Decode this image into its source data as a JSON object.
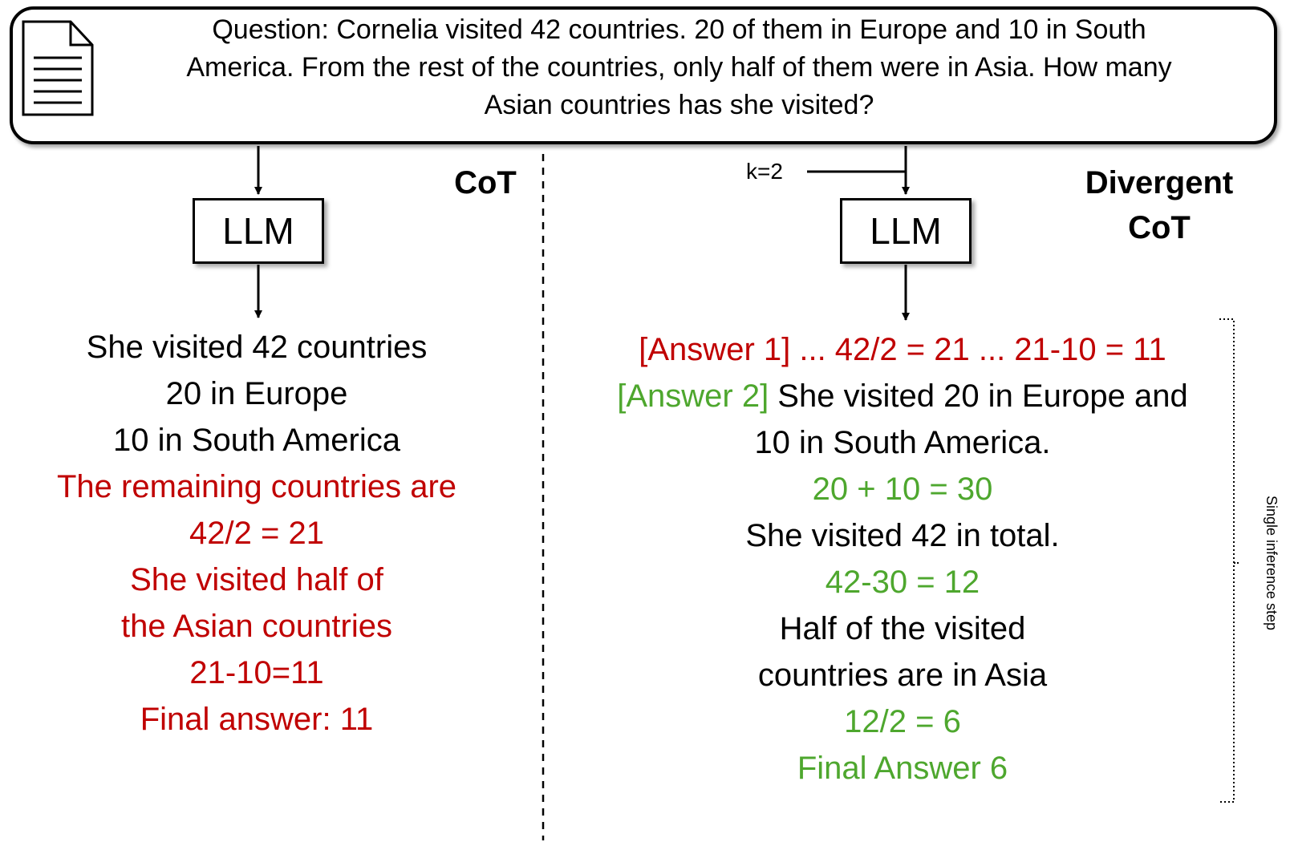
{
  "question": {
    "lines": [
      "Question: Cornelia visited 42 countries. 20 of them in Europe and 10 in South",
      "America. From the rest of the countries, only half of them were in Asia.  How many",
      "Asian countries has she visited?"
    ]
  },
  "cot": {
    "title": "CoT",
    "llm_label": "LLM",
    "lines": [
      {
        "text": "She visited 42 countries",
        "color": "#000000"
      },
      {
        "text": "20 in Europe",
        "color": "#000000"
      },
      {
        "text": "10 in South America",
        "color": "#000000"
      },
      {
        "text": "The remaining countries are",
        "color": "#c00000"
      },
      {
        "text": "42/2 = 21",
        "color": "#c00000"
      },
      {
        "text": "She visited half of",
        "color": "#c00000"
      },
      {
        "text": "the Asian countries",
        "color": "#c00000"
      },
      {
        "text": "21-10=11",
        "color": "#c00000"
      },
      {
        "text": "Final answer: 11",
        "color": "#c00000"
      }
    ]
  },
  "divergent": {
    "title_line1": "Divergent",
    "title_line2": "CoT",
    "k_label": "k=2",
    "llm_label": "LLM",
    "answer1_tag": "[Answer 1]",
    "answer1_text": " ... 42/2 = 21 ... 21-10 =  11",
    "answer2_tag": "[Answer 2]",
    "answer2_text": " She visited 20 in Europe and",
    "lines": [
      {
        "text": "10 in South America.",
        "color": "#000000"
      },
      {
        "text": "20 + 10 = 30",
        "color": "#4ea72e"
      },
      {
        "text": "She visited 42 in total.",
        "color": "#000000"
      },
      {
        "text": "42-30 = 12",
        "color": "#4ea72e"
      },
      {
        "text": "Half of the visited",
        "color": "#000000"
      },
      {
        "text": "countries are in Asia",
        "color": "#000000"
      },
      {
        "text": "12/2 = 6",
        "color": "#4ea72e"
      },
      {
        "text": "Final Answer 6",
        "color": "#4ea72e"
      }
    ],
    "side_label": "Single inference step"
  },
  "colors": {
    "wrong": "#c00000",
    "correct": "#4ea72e",
    "text": "#000000"
  }
}
